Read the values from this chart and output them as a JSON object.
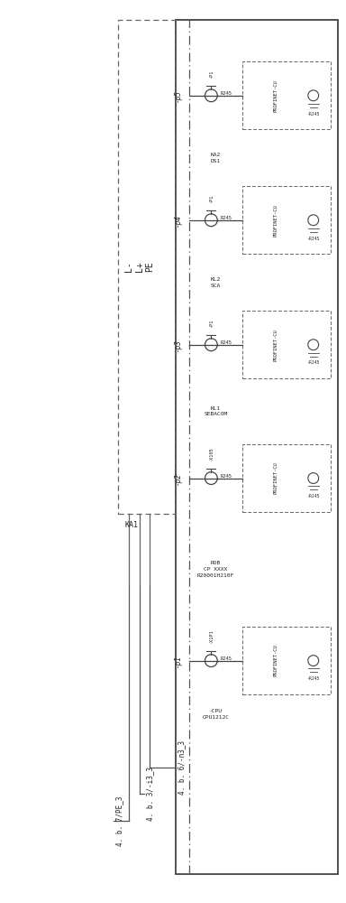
{
  "fig_width": 3.84,
  "fig_height": 10.0,
  "bg_color": "#ffffff",
  "line_color": "#444444",
  "dashed_color": "#666666",
  "text_color": "#222222",
  "panel_rows": [
    {
      "label": "-p5",
      "connector_label": "-P1",
      "device_name": "KA2",
      "device_sub": "DS1",
      "rj45": "RJ45"
    },
    {
      "label": "-p4",
      "connector_label": "-P1",
      "device_name": "KL2",
      "device_sub": "SCA",
      "rj45": "RJ45"
    },
    {
      "label": "-p3",
      "connector_label": "-P1",
      "device_name": "KL1",
      "device_sub": "SEBACOM",
      "rj45": "RJ45"
    },
    {
      "label": "-p2",
      "connector_label": "-X105",
      "device_name": "ROB",
      "device_sub": "CP XXXX\nR20001H210F",
      "rj45": "RJ45"
    },
    {
      "label": "-p1",
      "connector_label": "-X1P1",
      "device_name": "-CPU",
      "device_sub": "CPU1212C",
      "rj45": "RJ45"
    }
  ],
  "bus_labels": [
    "L-",
    "L+",
    "PE"
  ],
  "ka1_label": "KA1",
  "bottom_labels": [
    "4. b. 7/PE_3",
    "4. b. 3/-i3_3",
    "4. b. 6/-n3_3"
  ],
  "profinet_label": "PROFINET-CU",
  "rj45_right_label": "-RJ45"
}
